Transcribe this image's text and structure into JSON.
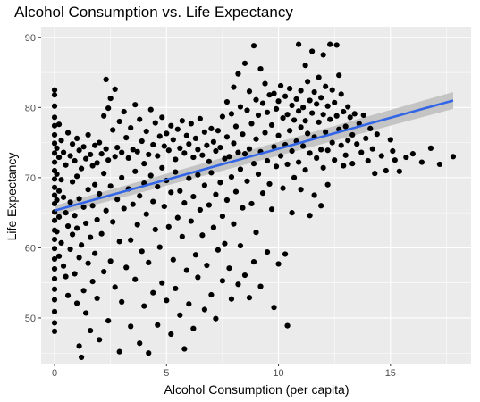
{
  "chart_data": {
    "type": "scatter",
    "title": "Alcohol Consumption vs. Life Expectancy",
    "xlabel": "Alcohol Consumption (per capita)",
    "ylabel": "Life Expectancy",
    "xlim": [
      -0.6,
      18.6
    ],
    "ylim": [
      43.5,
      91.5
    ],
    "x_ticks": [
      0,
      5,
      10,
      15
    ],
    "y_ticks": [
      50,
      60,
      70,
      80,
      90
    ],
    "grid": true,
    "legend": "none",
    "colors": {
      "panel": "#ebebeb",
      "grid": "#ffffff",
      "points": "#000000",
      "trend_line": "#3366e6",
      "confidence_band": "#bdbdbd"
    },
    "trend_line": {
      "method": "linear regression",
      "x": [
        0,
        17.8
      ],
      "y": [
        65.3,
        81.0
      ],
      "ci_lower": [
        64.6,
        79.8
      ],
      "ci_upper": [
        66.0,
        82.2
      ]
    },
    "points": [
      [
        0,
        82.5
      ],
      [
        0,
        81.8
      ],
      [
        0,
        80.2
      ],
      [
        0,
        78.6
      ],
      [
        0,
        77.4
      ],
      [
        0,
        76.1
      ],
      [
        0,
        74.9
      ],
      [
        0,
        73.5
      ],
      [
        0,
        72.2
      ],
      [
        0,
        71.0
      ],
      [
        0,
        69.8
      ],
      [
        0,
        68.6
      ],
      [
        0,
        67.5
      ],
      [
        0,
        66.3
      ],
      [
        0,
        65.1
      ],
      [
        0,
        63.9
      ],
      [
        0,
        62.5
      ],
      [
        0,
        61.2
      ],
      [
        0,
        59.9
      ],
      [
        0,
        58.4
      ],
      [
        0,
        57.0
      ],
      [
        0,
        55.6
      ],
      [
        0,
        54.1
      ],
      [
        0,
        52.6
      ],
      [
        0,
        50.9
      ],
      [
        0,
        49.3
      ],
      [
        0,
        48.1
      ],
      [
        0.1,
        74.2
      ],
      [
        0.1,
        70.5
      ],
      [
        0.1,
        66.8
      ],
      [
        0.1,
        62.3
      ],
      [
        0.2,
        77.6
      ],
      [
        0.2,
        72.9
      ],
      [
        0.2,
        68.1
      ],
      [
        0.2,
        64.4
      ],
      [
        0.2,
        58.8
      ],
      [
        0.3,
        75.3
      ],
      [
        0.3,
        69.7
      ],
      [
        0.3,
        60.7
      ],
      [
        0.4,
        73.6
      ],
      [
        0.4,
        67.2
      ],
      [
        0.4,
        57.4
      ],
      [
        0.5,
        71.8
      ],
      [
        0.5,
        65.0
      ],
      [
        0.5,
        55.9
      ],
      [
        0.6,
        76.4
      ],
      [
        0.6,
        63.1
      ],
      [
        0.6,
        53.2
      ],
      [
        0.7,
        73.1
      ],
      [
        0.7,
        66.5
      ],
      [
        0.7,
        59.8
      ],
      [
        0.8,
        74.8
      ],
      [
        0.8,
        69.4
      ],
      [
        0.8,
        61.9
      ],
      [
        0.9,
        72.4
      ],
      [
        0.9,
        64.6
      ],
      [
        0.9,
        56.3
      ],
      [
        1.0,
        75.6
      ],
      [
        1.0,
        70.2
      ],
      [
        1.0,
        62.8
      ],
      [
        1.0,
        52.1
      ],
      [
        1.1,
        73.9
      ],
      [
        1.1,
        67.0
      ],
      [
        1.1,
        58.6
      ],
      [
        1.1,
        46.0
      ],
      [
        1.2,
        71.3
      ],
      [
        1.2,
        60.4
      ],
      [
        1.2,
        44.4
      ],
      [
        1.3,
        74.4
      ],
      [
        1.3,
        65.8
      ],
      [
        1.3,
        53.9
      ],
      [
        1.4,
        72.7
      ],
      [
        1.4,
        63.5
      ],
      [
        1.4,
        50.7
      ],
      [
        1.5,
        76.1
      ],
      [
        1.5,
        68.3
      ],
      [
        1.5,
        57.8
      ],
      [
        1.6,
        73.3
      ],
      [
        1.6,
        61.5
      ],
      [
        1.6,
        48.2
      ],
      [
        1.7,
        71.7
      ],
      [
        1.7,
        66.0
      ],
      [
        1.7,
        55.2
      ],
      [
        1.8,
        74.6
      ],
      [
        1.8,
        69.0
      ],
      [
        1.8,
        59.2
      ],
      [
        1.9,
        72.1
      ],
      [
        1.9,
        64.0
      ],
      [
        1.9,
        52.8
      ],
      [
        2.0,
        75.0
      ],
      [
        2.0,
        67.7
      ],
      [
        2.0,
        46.9
      ],
      [
        2.1,
        73.4
      ],
      [
        2.1,
        62.0
      ],
      [
        2.2,
        78.8
      ],
      [
        2.2,
        70.6
      ],
      [
        2.2,
        56.6
      ],
      [
        2.3,
        84.0
      ],
      [
        2.3,
        74.1
      ],
      [
        2.3,
        65.3
      ],
      [
        2.4,
        79.9
      ],
      [
        2.4,
        72.5
      ],
      [
        2.4,
        49.6
      ],
      [
        2.5,
        81.3
      ],
      [
        2.5,
        68.8
      ],
      [
        2.5,
        58.1
      ],
      [
        2.6,
        76.8
      ],
      [
        2.6,
        63.7
      ],
      [
        2.7,
        82.6
      ],
      [
        2.7,
        73.0
      ],
      [
        2.7,
        54.4
      ],
      [
        2.8,
        74.3
      ],
      [
        2.8,
        66.9
      ],
      [
        2.9,
        78.0
      ],
      [
        2.9,
        60.9
      ],
      [
        2.9,
        45.2
      ],
      [
        3.0,
        73.6
      ],
      [
        3.0,
        70.0
      ],
      [
        3.0,
        52.3
      ],
      [
        3.1,
        79.4
      ],
      [
        3.1,
        65.6
      ],
      [
        3.2,
        75.7
      ],
      [
        3.2,
        57.2
      ],
      [
        3.3,
        72.8
      ],
      [
        3.3,
        68.4
      ],
      [
        3.4,
        77.1
      ],
      [
        3.4,
        61.1
      ],
      [
        3.4,
        48.8
      ],
      [
        3.5,
        74.0
      ],
      [
        3.5,
        66.2
      ],
      [
        3.6,
        80.4
      ],
      [
        3.6,
        70.9
      ],
      [
        3.6,
        55.5
      ],
      [
        3.7,
        73.7
      ],
      [
        3.7,
        63.3
      ],
      [
        3.8,
        78.3
      ],
      [
        3.8,
        67.4
      ],
      [
        3.8,
        46.4
      ],
      [
        3.9,
        75.2
      ],
      [
        3.9,
        59.5
      ],
      [
        4.0,
        72.0
      ],
      [
        4.0,
        69.2
      ],
      [
        4.0,
        51.7
      ],
      [
        4.1,
        76.6
      ],
      [
        4.1,
        64.8
      ],
      [
        4.2,
        73.3
      ],
      [
        4.2,
        57.9
      ],
      [
        4.2,
        45.0
      ],
      [
        4.3,
        79.7
      ],
      [
        4.3,
        70.3
      ],
      [
        4.4,
        74.7
      ],
      [
        4.4,
        66.6
      ],
      [
        4.4,
        53.6
      ],
      [
        4.5,
        77.8
      ],
      [
        4.5,
        62.6
      ],
      [
        4.6,
        73.1
      ],
      [
        4.6,
        68.7
      ],
      [
        4.6,
        49.0
      ],
      [
        4.7,
        75.9
      ],
      [
        4.7,
        60.1
      ],
      [
        4.8,
        78.6
      ],
      [
        4.8,
        71.4
      ],
      [
        4.8,
        55.0
      ],
      [
        4.9,
        74.5
      ],
      [
        4.9,
        65.9
      ],
      [
        5.0,
        76.3
      ],
      [
        5.0,
        69.6
      ],
      [
        5.0,
        52.5
      ],
      [
        5.1,
        73.9
      ],
      [
        5.1,
        63.0
      ],
      [
        5.2,
        77.4
      ],
      [
        5.2,
        67.9
      ],
      [
        5.2,
        47.7
      ],
      [
        5.3,
        75.4
      ],
      [
        5.3,
        58.3
      ],
      [
        5.4,
        72.6
      ],
      [
        5.4,
        70.8
      ],
      [
        5.4,
        54.2
      ],
      [
        5.5,
        76.9
      ],
      [
        5.5,
        64.3
      ],
      [
        5.6,
        74.2
      ],
      [
        5.6,
        68.1
      ],
      [
        5.6,
        50.4
      ],
      [
        5.7,
        78.1
      ],
      [
        5.7,
        61.6
      ],
      [
        5.8,
        73.5
      ],
      [
        5.8,
        66.4
      ],
      [
        5.8,
        45.6
      ],
      [
        5.9,
        76.0
      ],
      [
        5.9,
        56.8
      ],
      [
        6.0,
        74.8
      ],
      [
        6.0,
        69.9
      ],
      [
        6.0,
        52.0
      ],
      [
        6.1,
        77.7
      ],
      [
        6.1,
        63.8
      ],
      [
        6.2,
        72.9
      ],
      [
        6.2,
        67.3
      ],
      [
        6.2,
        48.5
      ],
      [
        6.3,
        75.6
      ],
      [
        6.3,
        59.0
      ],
      [
        6.4,
        74.0
      ],
      [
        6.4,
        70.4
      ],
      [
        6.4,
        55.8
      ],
      [
        6.5,
        78.4
      ],
      [
        6.5,
        65.4
      ],
      [
        6.6,
        73.2
      ],
      [
        6.6,
        61.8
      ],
      [
        6.7,
        76.5
      ],
      [
        6.7,
        68.9
      ],
      [
        6.7,
        51.2
      ],
      [
        6.8,
        74.6
      ],
      [
        6.8,
        57.5
      ],
      [
        6.9,
        72.3
      ],
      [
        6.9,
        66.1
      ],
      [
        7.0,
        77.0
      ],
      [
        7.0,
        70.7
      ],
      [
        7.0,
        53.3
      ],
      [
        7.1,
        75.1
      ],
      [
        7.1,
        62.9
      ],
      [
        7.2,
        73.8
      ],
      [
        7.2,
        67.6
      ],
      [
        7.2,
        49.9
      ],
      [
        7.3,
        76.7
      ],
      [
        7.3,
        59.7
      ],
      [
        7.4,
        74.3
      ],
      [
        7.4,
        69.3
      ],
      [
        7.5,
        78.7
      ],
      [
        7.5,
        64.5
      ],
      [
        7.5,
        55.3
      ],
      [
        7.6,
        72.7
      ],
      [
        7.6,
        60.6
      ],
      [
        7.7,
        80.8
      ],
      [
        7.7,
        75.8
      ],
      [
        7.7,
        66.8
      ],
      [
        7.8,
        73.0
      ],
      [
        7.8,
        57.1
      ],
      [
        7.9,
        79.1
      ],
      [
        7.9,
        70.1
      ],
      [
        7.9,
        52.7
      ],
      [
        8.0,
        82.9
      ],
      [
        8.0,
        74.9
      ],
      [
        8.0,
        63.4
      ],
      [
        8.1,
        77.3
      ],
      [
        8.1,
        68.0
      ],
      [
        8.2,
        84.8
      ],
      [
        8.2,
        73.6
      ],
      [
        8.2,
        54.8
      ],
      [
        8.3,
        80.1
      ],
      [
        8.3,
        71.2
      ],
      [
        8.3,
        60.3
      ],
      [
        8.4,
        76.2
      ],
      [
        8.4,
        65.7
      ],
      [
        8.5,
        86.3
      ],
      [
        8.5,
        73.4
      ],
      [
        8.5,
        56.1
      ],
      [
        8.6,
        79.6
      ],
      [
        8.6,
        69.5
      ],
      [
        8.7,
        82.3
      ],
      [
        8.7,
        74.1
      ],
      [
        8.7,
        52.9
      ],
      [
        8.8,
        77.7
      ],
      [
        8.8,
        66.3
      ],
      [
        8.9,
        88.8
      ],
      [
        8.9,
        72.0
      ],
      [
        8.9,
        58.0
      ],
      [
        9.0,
        81.1
      ],
      [
        9.0,
        75.5
      ],
      [
        9.0,
        62.2
      ],
      [
        9.1,
        78.9
      ],
      [
        9.1,
        70.5
      ],
      [
        9.2,
        85.5
      ],
      [
        9.2,
        73.7
      ],
      [
        9.2,
        54.5
      ],
      [
        9.3,
        80.6
      ],
      [
        9.3,
        67.8
      ],
      [
        9.4,
        83.4
      ],
      [
        9.4,
        76.4
      ],
      [
        9.5,
        79.3
      ],
      [
        9.5,
        72.4
      ],
      [
        9.5,
        59.4
      ],
      [
        9.6,
        81.8
      ],
      [
        9.6,
        69.1
      ],
      [
        9.7,
        77.5
      ],
      [
        9.7,
        65.5
      ],
      [
        9.8,
        82.0
      ],
      [
        9.8,
        74.4
      ],
      [
        9.8,
        51.5
      ],
      [
        9.9,
        79.8
      ],
      [
        9.9,
        71.6
      ],
      [
        10.0,
        80.9
      ],
      [
        10.0,
        76.0
      ],
      [
        10.0,
        57.7
      ],
      [
        10.1,
        83.1
      ],
      [
        10.1,
        73.1
      ],
      [
        10.2,
        78.5
      ],
      [
        10.2,
        68.5
      ],
      [
        10.3,
        81.6
      ],
      [
        10.3,
        74.7
      ],
      [
        10.3,
        59.1
      ],
      [
        10.4,
        79.0
      ],
      [
        10.4,
        71.9
      ],
      [
        10.4,
        48.9
      ],
      [
        10.5,
        82.7
      ],
      [
        10.5,
        76.7
      ],
      [
        10.6,
        80.3
      ],
      [
        10.6,
        73.8
      ],
      [
        10.6,
        65.0
      ],
      [
        10.7,
        78.2
      ],
      [
        10.7,
        70.0
      ],
      [
        10.8,
        81.2
      ],
      [
        10.8,
        75.2
      ],
      [
        10.9,
        89.0
      ],
      [
        10.9,
        79.5
      ],
      [
        10.9,
        72.2
      ],
      [
        11.0,
        82.4
      ],
      [
        11.0,
        77.2
      ],
      [
        11.0,
        68.3
      ],
      [
        11.1,
        80.0
      ],
      [
        11.1,
        74.5
      ],
      [
        11.2,
        86.0
      ],
      [
        11.2,
        78.1
      ],
      [
        11.2,
        71.1
      ],
      [
        11.3,
        83.7
      ],
      [
        11.3,
        76.3
      ],
      [
        11.4,
        81.0
      ],
      [
        11.4,
        73.5
      ],
      [
        11.4,
        64.6
      ],
      [
        11.5,
        88.0
      ],
      [
        11.5,
        79.2
      ],
      [
        11.6,
        82.2
      ],
      [
        11.6,
        75.8
      ],
      [
        11.6,
        67.5
      ],
      [
        11.7,
        80.5
      ],
      [
        11.7,
        72.8
      ],
      [
        11.8,
        84.3
      ],
      [
        11.8,
        77.9
      ],
      [
        11.9,
        81.4
      ],
      [
        11.9,
        74.0
      ],
      [
        11.9,
        66.0
      ],
      [
        12.0,
        87.5
      ],
      [
        12.0,
        79.0
      ],
      [
        12.0,
        71.4
      ],
      [
        12.1,
        83.0
      ],
      [
        12.1,
        76.5
      ],
      [
        12.2,
        80.2
      ],
      [
        12.2,
        73.9
      ],
      [
        12.2,
        69.0
      ],
      [
        12.3,
        89.0
      ],
      [
        12.3,
        78.3
      ],
      [
        12.4,
        82.5
      ],
      [
        12.4,
        75.0
      ],
      [
        12.5,
        80.7
      ],
      [
        12.5,
        72.5
      ],
      [
        12.6,
        88.9
      ],
      [
        12.6,
        78.8
      ],
      [
        12.7,
        84.6
      ],
      [
        12.7,
        76.9
      ],
      [
        12.8,
        81.9
      ],
      [
        12.8,
        74.6
      ],
      [
        12.9,
        79.4
      ],
      [
        12.9,
        71.7
      ],
      [
        13.0,
        77.3
      ],
      [
        13.0,
        73.2
      ],
      [
        13.1,
        80.1
      ],
      [
        13.1,
        75.3
      ],
      [
        13.2,
        78.6
      ],
      [
        13.3,
        76.1
      ],
      [
        13.3,
        72.0
      ],
      [
        13.4,
        79.1
      ],
      [
        13.5,
        74.8
      ],
      [
        13.6,
        77.7
      ],
      [
        13.7,
        73.6
      ],
      [
        13.8,
        78.9
      ],
      [
        13.9,
        75.6
      ],
      [
        14.0,
        72.4
      ],
      [
        14.1,
        77.0
      ],
      [
        14.2,
        74.1
      ],
      [
        14.3,
        70.6
      ],
      [
        14.4,
        76.2
      ],
      [
        14.6,
        73.1
      ],
      [
        14.8,
        71.0
      ],
      [
        15.0,
        75.4
      ],
      [
        15.1,
        73.8
      ],
      [
        15.2,
        72.5
      ],
      [
        15.4,
        70.9
      ],
      [
        15.7,
        72.9
      ],
      [
        16.0,
        73.4
      ],
      [
        16.4,
        72.2
      ],
      [
        16.8,
        74.2
      ],
      [
        17.2,
        71.9
      ],
      [
        17.8,
        73.0
      ]
    ]
  }
}
